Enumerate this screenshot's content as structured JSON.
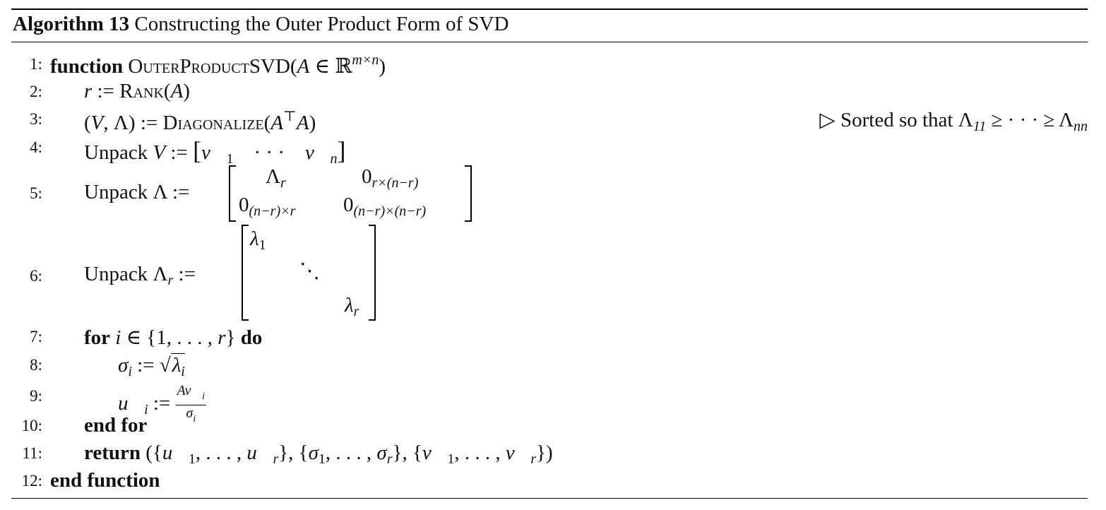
{
  "caption": {
    "label": "Algorithm 13",
    "title": "Constructing the Outer Product Form of SVD"
  },
  "lines": [
    {
      "num": "1:",
      "text": "function OuterProductSVD(A ∈ ℝ^{m×n})"
    },
    {
      "num": "2:",
      "text": "r := Rank(A)"
    },
    {
      "num": "3:",
      "text": "(V, Λ) := Diagonalize(AᵀA)",
      "comment": "▷ Sorted so that Λ11 ≥ ··· ≥ Λnn"
    },
    {
      "num": "4:",
      "text": "Unpack V := [v1 ··· vn]"
    },
    {
      "num": "5:",
      "text": "Unpack Λ := [[Λr, 0r×(n−r)], [0(n−r)×r, 0(n−r)×(n−r)]]"
    },
    {
      "num": "6:",
      "text": "Unpack Λr := diag(λ1, …, λr)"
    },
    {
      "num": "7:",
      "text": "for i ∈ {1, ..., r} do"
    },
    {
      "num": "8:",
      "text": "σi := √λi"
    },
    {
      "num": "9:",
      "text": "ui := Avi / σi"
    },
    {
      "num": "10:",
      "text": "end for"
    },
    {
      "num": "11:",
      "text": "return ({u1, ..., ur}, {σ1, ..., σr}, {v1, ..., vr})"
    },
    {
      "num": "12:",
      "text": "end function"
    }
  ],
  "tokens": {
    "function_kw": "function",
    "func_name": "OuterProductSVD",
    "rank_name": "Rank",
    "diag_name": "Diagonalize",
    "unpack": "Unpack",
    "for_kw": "for",
    "do_kw": "do",
    "end_for": "end for",
    "return_kw": "return",
    "end_function": "end function",
    "comment3": "▷ Sorted so that Λ"
  }
}
